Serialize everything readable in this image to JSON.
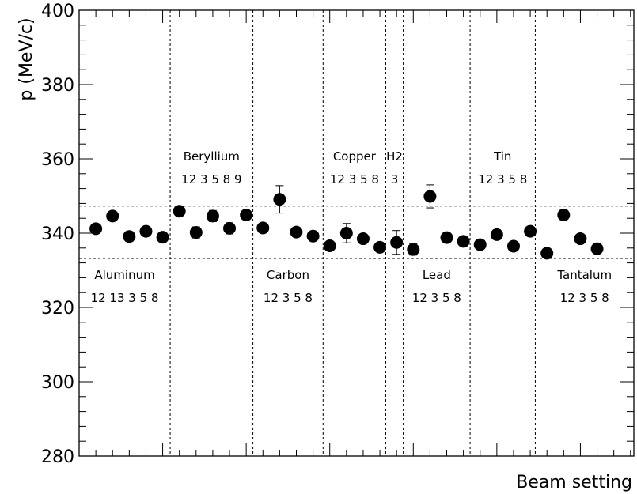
{
  "chart_data": {
    "type": "scatter",
    "xlabel": "Beam setting",
    "ylabel": "p (MeV/c)",
    "ylim": [
      280,
      400
    ],
    "yticks": [
      "280",
      "300",
      "320",
      "340",
      "360",
      "380",
      "400"
    ],
    "xlim": [
      0,
      33.2
    ],
    "band": {
      "lower": 333.2,
      "upper": 347.3
    },
    "separators": [
      5.45,
      10.4,
      14.6,
      18.35,
      19.4,
      23.4,
      27.3
    ],
    "groups": [
      {
        "name": "Aluminum",
        "settings": "12 13  3    5  8",
        "label_pos": "bottom"
      },
      {
        "name": "Beryllium",
        "settings": "12  3  5  8  9",
        "label_pos": "top"
      },
      {
        "name": "Carbon",
        "settings": "12  3  5  8",
        "label_pos": "bottom"
      },
      {
        "name": "Copper",
        "settings": "12  3  5  8",
        "label_pos": "top"
      },
      {
        "name": "H2",
        "settings": "3",
        "label_pos": "top"
      },
      {
        "name": "Lead",
        "settings": "12  3  5  8",
        "label_pos": "bottom"
      },
      {
        "name": "Tin",
        "settings": "12  3  5  8",
        "label_pos": "top"
      },
      {
        "name": "Tantalum",
        "settings": "12  3  5  8",
        "label_pos": "bottom"
      }
    ],
    "points": [
      {
        "x": 1,
        "y": 341.2,
        "err": 0.6
      },
      {
        "x": 2,
        "y": 344.6,
        "err": 0.5
      },
      {
        "x": 3,
        "y": 339.1,
        "err": 1.3
      },
      {
        "x": 4,
        "y": 340.5,
        "err": 0.6
      },
      {
        "x": 5,
        "y": 338.9,
        "err": 0.5
      },
      {
        "x": 6,
        "y": 345.9,
        "err": 1.1
      },
      {
        "x": 7,
        "y": 340.2,
        "err": 1.5
      },
      {
        "x": 8,
        "y": 344.6,
        "err": 1.5
      },
      {
        "x": 9,
        "y": 341.3,
        "err": 1.5
      },
      {
        "x": 10,
        "y": 344.9,
        "err": 0.6
      },
      {
        "x": 11,
        "y": 341.4,
        "err": 0.5
      },
      {
        "x": 12,
        "y": 349.1,
        "err": 3.7
      },
      {
        "x": 13,
        "y": 340.3,
        "err": 0.5
      },
      {
        "x": 14,
        "y": 339.2,
        "err": 0.5
      },
      {
        "x": 15,
        "y": 336.6,
        "err": 0.5
      },
      {
        "x": 16,
        "y": 340.0,
        "err": 2.6
      },
      {
        "x": 17,
        "y": 338.5,
        "err": 0.5
      },
      {
        "x": 18,
        "y": 336.2,
        "err": 0.5
      },
      {
        "x": 19,
        "y": 337.5,
        "err": 3.2
      },
      {
        "x": 20,
        "y": 335.6,
        "err": 1.5
      },
      {
        "x": 21,
        "y": 349.9,
        "err": 3.1
      },
      {
        "x": 22,
        "y": 338.8,
        "err": 0.5
      },
      {
        "x": 23,
        "y": 337.8,
        "err": 0.5
      },
      {
        "x": 24,
        "y": 336.9,
        "err": 0.5
      },
      {
        "x": 25,
        "y": 339.6,
        "err": 1.3
      },
      {
        "x": 26,
        "y": 336.5,
        "err": 0.5
      },
      {
        "x": 27,
        "y": 340.5,
        "err": 0.5
      },
      {
        "x": 28,
        "y": 334.6,
        "err": 0.5
      },
      {
        "x": 29,
        "y": 344.9,
        "err": 1.3
      },
      {
        "x": 30,
        "y": 338.5,
        "err": 0.5
      },
      {
        "x": 31,
        "y": 335.8,
        "err": 0.5
      }
    ],
    "colors": {
      "marker": "#000000",
      "axes": "#000000",
      "grid": "none",
      "background": "#ffffff"
    }
  }
}
